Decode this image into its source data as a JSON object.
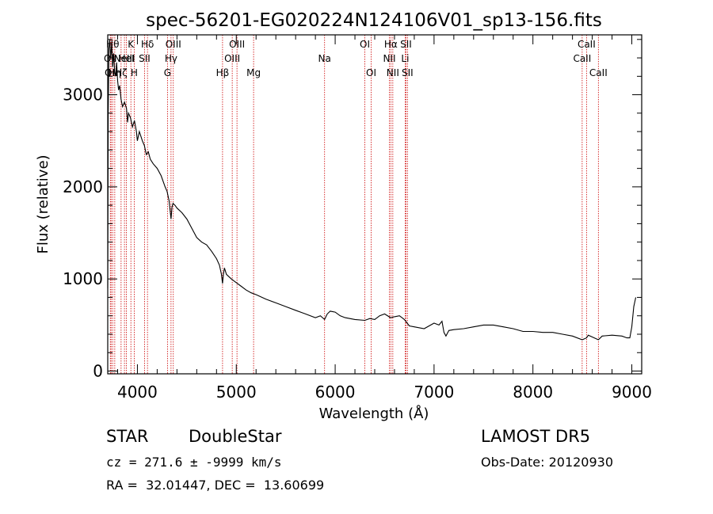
{
  "chart_data": {
    "type": "line",
    "title": "spec-56201-EG020224N124106V01_sp13-156.fits",
    "xlabel": "Wavelength (Å)",
    "ylabel": "Flux (relative)",
    "xlim": [
      3700,
      9100
    ],
    "ylim": [
      -30,
      3650
    ],
    "xticks": [
      4000,
      5000,
      6000,
      7000,
      8000,
      9000
    ],
    "yticks": [
      0,
      1000,
      2000,
      3000
    ],
    "grid": false,
    "line_color": "#000000",
    "marker_color": "#cc0000",
    "series": [
      {
        "x": [
          3700,
          3705,
          3712,
          3720,
          3730,
          3740,
          3750,
          3760,
          3770,
          3780,
          3790,
          3800,
          3810,
          3820,
          3835,
          3850,
          3870,
          3890,
          3900,
          3910,
          3930,
          3950,
          3970,
          3990,
          4000,
          4020,
          4050,
          4070,
          4090,
          4110,
          4130,
          4160,
          4200,
          4240,
          4280,
          4300,
          4320,
          4340,
          4350,
          4360,
          4380,
          4400,
          4450,
          4500,
          4550,
          4600,
          4650,
          4700,
          4750,
          4800,
          4830,
          4850,
          4861,
          4870,
          4880,
          4900,
          4950,
          5000,
          5050,
          5100,
          5150,
          5200,
          5300,
          5400,
          5500,
          5600,
          5700,
          5800,
          5850,
          5893,
          5920,
          5950,
          6000,
          6050,
          6100,
          6200,
          6300,
          6350,
          6400,
          6450,
          6500,
          6560,
          6600,
          6650,
          6700,
          6750,
          6800,
          6900,
          7000,
          7050,
          7080,
          7100,
          7120,
          7150,
          7200,
          7300,
          7400,
          7500,
          7600,
          7700,
          7800,
          7900,
          8000,
          8100,
          8200,
          8300,
          8400,
          8498,
          8542,
          8560,
          8600,
          8662,
          8700,
          8800,
          8900,
          8950,
          8980,
          9000,
          9020,
          9040
        ],
        "y": [
          900,
          2800,
          3500,
          3600,
          3400,
          3550,
          3300,
          3450,
          3250,
          3200,
          3350,
          3150,
          3050,
          3100,
          2950,
          2870,
          2920,
          2850,
          2700,
          2800,
          2750,
          2650,
          2720,
          2600,
          2500,
          2600,
          2500,
          2450,
          2350,
          2380,
          2300,
          2250,
          2200,
          2120,
          2000,
          1950,
          1850,
          1650,
          1780,
          1820,
          1800,
          1770,
          1720,
          1650,
          1550,
          1450,
          1400,
          1370,
          1300,
          1220,
          1150,
          1050,
          950,
          1050,
          1120,
          1050,
          1000,
          960,
          920,
          880,
          850,
          830,
          780,
          740,
          700,
          660,
          620,
          580,
          600,
          560,
          620,
          650,
          640,
          600,
          580,
          560,
          550,
          570,
          560,
          600,
          620,
          580,
          590,
          600,
          560,
          490,
          480,
          460,
          520,
          500,
          540,
          420,
          380,
          440,
          450,
          460,
          480,
          500,
          500,
          480,
          460,
          430,
          430,
          420,
          420,
          400,
          380,
          340,
          360,
          390,
          370,
          340,
          380,
          390,
          380,
          360,
          360,
          480,
          700,
          800
        ]
      }
    ],
    "lines": [
      {
        "x": 3726,
        "label": "OII",
        "row": 1
      },
      {
        "x": 3734,
        "label": "OII",
        "row": 2
      },
      {
        "x": 3750,
        "label": "Hθ",
        "row": 0
      },
      {
        "x": 3771,
        "label": "Hη",
        "row": 2
      },
      {
        "x": 3835,
        "label": "Hζ",
        "row": 2
      },
      {
        "x": 3869,
        "label": "NeIII",
        "row": 1
      },
      {
        "x": 3889,
        "label": "HeI",
        "row": 1
      },
      {
        "x": 3934,
        "label": "K",
        "row": 0
      },
      {
        "x": 3968,
        "label": "H",
        "row": 2
      },
      {
        "x": 4072,
        "label": "SII",
        "row": 1
      },
      {
        "x": 4102,
        "label": "Hδ",
        "row": 0
      },
      {
        "x": 4304,
        "label": "G",
        "row": 2
      },
      {
        "x": 4340,
        "label": "Hγ",
        "row": 1
      },
      {
        "x": 4363,
        "label": "OIII",
        "row": 0
      },
      {
        "x": 4861,
        "label": "Hβ",
        "row": 2
      },
      {
        "x": 4959,
        "label": "OIII",
        "row": 1
      },
      {
        "x": 5007,
        "label": "OIII",
        "row": 0
      },
      {
        "x": 5175,
        "label": "Mg",
        "row": 2
      },
      {
        "x": 5893,
        "label": "Na",
        "row": 1
      },
      {
        "x": 6300,
        "label": "OI",
        "row": 0
      },
      {
        "x": 6364,
        "label": "OI",
        "row": 2
      },
      {
        "x": 6548,
        "label": "NII",
        "row": 1
      },
      {
        "x": 6563,
        "label": "Hα",
        "row": 0
      },
      {
        "x": 6583,
        "label": "NII",
        "row": 2
      },
      {
        "x": 6708,
        "label": "Li",
        "row": 1
      },
      {
        "x": 6716,
        "label": "SII",
        "row": 0
      },
      {
        "x": 6731,
        "label": "SII",
        "row": 2
      },
      {
        "x": 8498,
        "label": "CaII",
        "row": 1
      },
      {
        "x": 8542,
        "label": "CaII",
        "row": 0
      },
      {
        "x": 8662,
        "label": "CaII",
        "row": 2
      }
    ]
  },
  "info": {
    "object_class": "STAR",
    "subclass": "DoubleStar",
    "survey": "LAMOST DR5",
    "cz": "cz = 271.6 ± -9999 km/s",
    "obs_date": "Obs-Date: 20120930",
    "coords": "RA =  32.01447, DEC =  13.60699"
  }
}
